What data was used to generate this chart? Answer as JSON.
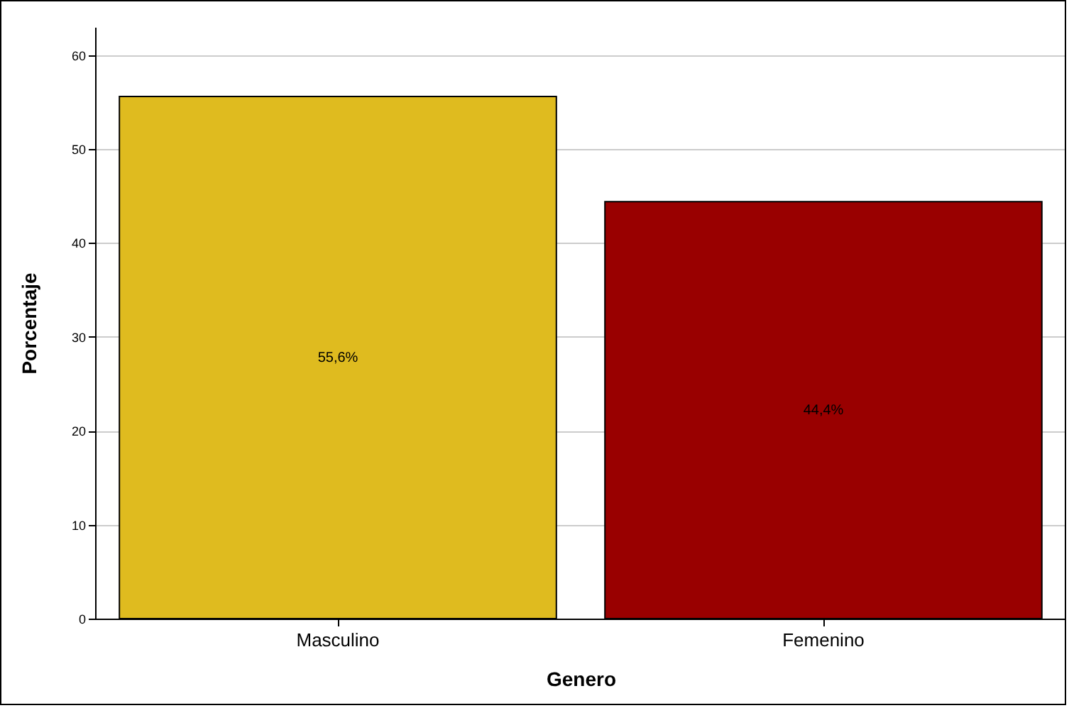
{
  "chart_data": {
    "type": "bar",
    "xlabel": "Genero",
    "ylabel": "Porcentaje",
    "categories": [
      "Masculino",
      "Femenino"
    ],
    "values": [
      55.6,
      44.4
    ],
    "colors": [
      "#dfbb1f",
      "#990000"
    ],
    "value_labels": [
      "55,6%",
      "44,4%"
    ],
    "ylim": [
      0,
      63
    ],
    "yticks": [
      0,
      10,
      20,
      30,
      40,
      50,
      60
    ],
    "grid": "y"
  }
}
